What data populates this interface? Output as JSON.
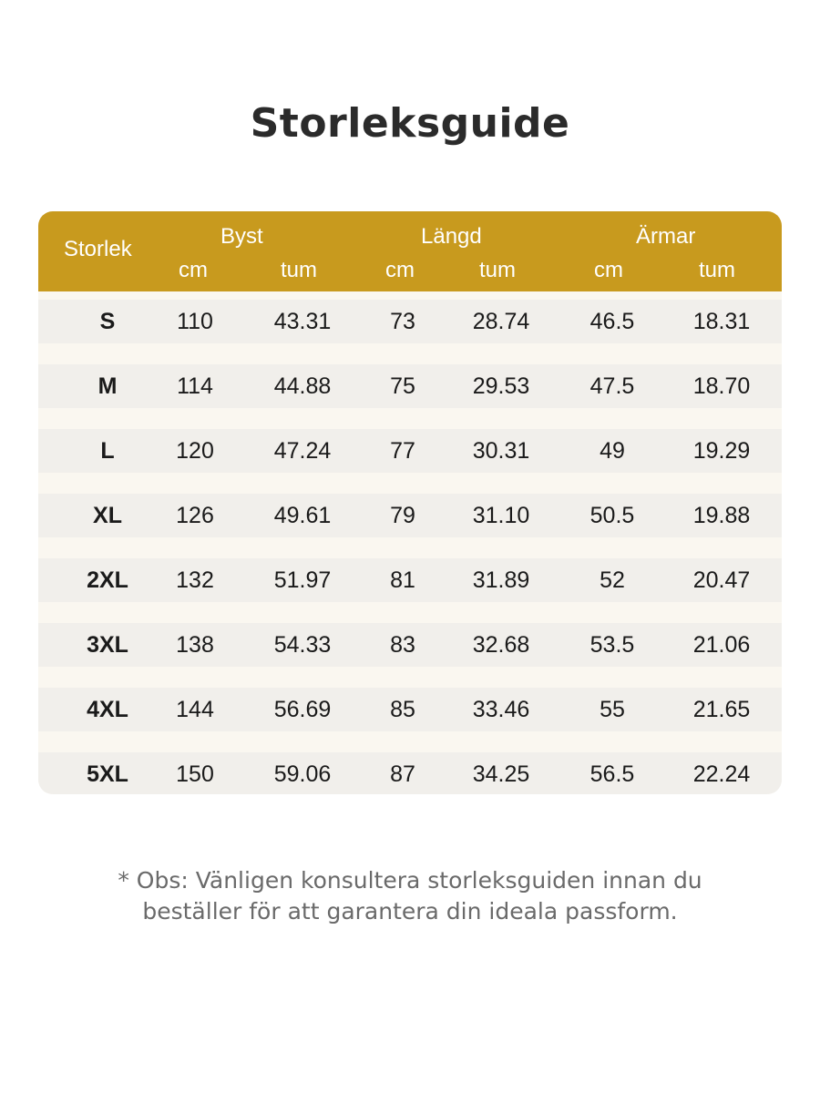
{
  "title": "Storleksguide",
  "table": {
    "header": {
      "size": "Storlek",
      "groups": [
        "Byst",
        "Längd",
        "Ärmar"
      ],
      "units": [
        "cm",
        "tum",
        "cm",
        "tum",
        "cm",
        "tum"
      ]
    },
    "rows": [
      [
        "S",
        "110",
        "43.31",
        "73",
        "28.74",
        "46.5",
        "18.31"
      ],
      [
        "M",
        "114",
        "44.88",
        "75",
        "29.53",
        "47.5",
        "18.70"
      ],
      [
        "L",
        "120",
        "47.24",
        "77",
        "30.31",
        "49",
        "19.29"
      ],
      [
        "XL",
        "126",
        "49.61",
        "79",
        "31.10",
        "50.5",
        "19.88"
      ],
      [
        "2XL",
        "132",
        "51.97",
        "81",
        "31.89",
        "52",
        "20.47"
      ],
      [
        "3XL",
        "138",
        "54.33",
        "83",
        "32.68",
        "53.5",
        "21.06"
      ],
      [
        "4XL",
        "144",
        "56.69",
        "85",
        "33.46",
        "55",
        "21.65"
      ],
      [
        "5XL",
        "150",
        "59.06",
        "87",
        "34.25",
        "56.5",
        "22.24"
      ]
    ]
  },
  "note": {
    "line1": "* Obs: Vänligen konsultera storleksguiden innan du",
    "line2": "beställer för att garantera din ideala passform."
  },
  "colors": {
    "header_bg": "#c89a1e",
    "header_text": "#ffffff",
    "row_bg": "#f1efeb",
    "title_text": "#2b2b2b",
    "note_text": "#6a6a6a"
  }
}
